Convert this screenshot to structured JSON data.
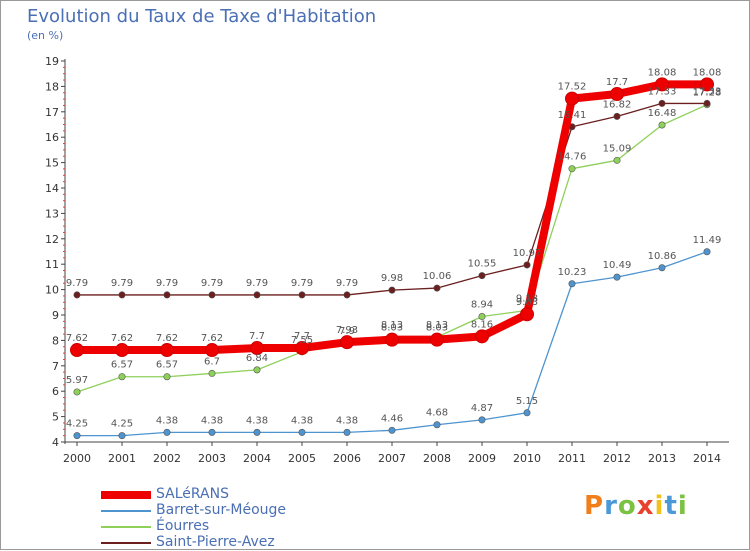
{
  "header": {
    "title": "Evolution du Taux de Taxe d'Habitation",
    "unit": "(en %)"
  },
  "logo": {
    "text": "Proxiti",
    "colors": [
      "#f07e1a",
      "#4a9ad8",
      "#7cc242",
      "#e8412c",
      "#f2c21b",
      "#4a9ad8",
      "#7cc242"
    ]
  },
  "chart_data": {
    "type": "line",
    "title": "Evolution du Taux de Taxe d'Habitation",
    "ylabel": "(en %)",
    "xlabel": "",
    "x": [
      "2000",
      "2001",
      "2002",
      "2003",
      "2004",
      "2005",
      "2006",
      "2007",
      "2008",
      "2009",
      "2010",
      "2011",
      "2012",
      "2013",
      "2014"
    ],
    "ylim": [
      4,
      19
    ],
    "yticks": [
      "4",
      "5",
      "6",
      "7",
      "8",
      "9",
      "10",
      "11",
      "12",
      "13",
      "14",
      "15",
      "16",
      "17",
      "18",
      "19"
    ],
    "grid": false,
    "legend": "bottom-left",
    "series": [
      {
        "name": "SALéRANS",
        "color": "#ee0000",
        "values": [
          7.62,
          7.62,
          7.62,
          7.62,
          7.7,
          7.7,
          7.93,
          8.03,
          8.03,
          8.16,
          9.03,
          17.52,
          17.7,
          18.08,
          18.08
        ],
        "labels": [
          "7.62",
          "7.62",
          "7.62",
          "7.62",
          "7.7",
          "7.7",
          "7.93",
          "8.03",
          "8.03",
          "8.16",
          "9.03",
          "17.52",
          "17.7",
          "18.08",
          "18.08"
        ]
      },
      {
        "name": "Barret-sur-Méouge",
        "color": "#4e94cf",
        "values": [
          4.25,
          4.25,
          4.38,
          4.38,
          4.38,
          4.38,
          4.38,
          4.46,
          4.68,
          4.87,
          5.15,
          10.23,
          10.49,
          10.86,
          11.49
        ],
        "labels": [
          "4.25",
          "4.25",
          "4.38",
          "4.38",
          "4.38",
          "4.38",
          "4.38",
          "4.46",
          "4.68",
          "4.87",
          "5.15",
          "10.23",
          "10.49",
          "10.86",
          "11.49"
        ]
      },
      {
        "name": "Éourres",
        "color": "#8ed05a",
        "values": [
          5.97,
          6.57,
          6.57,
          6.7,
          6.84,
          7.55,
          7.9,
          8.13,
          8.13,
          8.94,
          9.18,
          14.76,
          15.09,
          16.48,
          17.28
        ],
        "labels": [
          "5.97",
          "6.57",
          "6.57",
          "6.7",
          "6.84",
          "7.55",
          "7.9",
          "8.13",
          "8.13",
          "8.94",
          "9.18",
          "14.76",
          "15.09",
          "16.48",
          "17.28"
        ]
      },
      {
        "name": "Saint-Pierre-Avez",
        "color": "#6b1f1f",
        "values": [
          9.79,
          9.79,
          9.79,
          9.79,
          9.79,
          9.79,
          9.79,
          9.98,
          10.06,
          10.55,
          10.97,
          16.41,
          16.82,
          17.33,
          17.33
        ],
        "labels": [
          "9.79",
          "9.79",
          "9.79",
          "9.79",
          "9.79",
          "9.79",
          "9.79",
          "9.98",
          "10.06",
          "10.55",
          "10.97",
          "16.41",
          "16.82",
          "17.33",
          "17.33"
        ]
      }
    ]
  }
}
